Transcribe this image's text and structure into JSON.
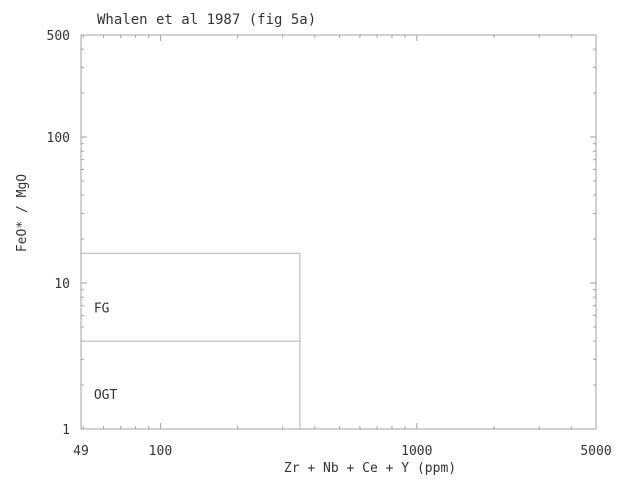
{
  "chart_data": {
    "type": "scatter",
    "title": "Whalen et al 1987 (fig 5a)",
    "xlabel": "Zr + Nb + Ce + Y  (ppm)",
    "ylabel": "FeO* / MgO",
    "x_scale": "log",
    "y_scale": "log",
    "xlim": [
      49,
      5000
    ],
    "ylim": [
      1,
      500
    ],
    "x_tick_labels": [
      {
        "value": 49,
        "label": "49"
      },
      {
        "value": 100,
        "label": "100"
      },
      {
        "value": 1000,
        "label": "1000"
      },
      {
        "value": 5000,
        "label": "5000"
      }
    ],
    "y_tick_labels": [
      {
        "value": 1,
        "label": "1"
      },
      {
        "value": 10,
        "label": "10"
      },
      {
        "value": 100,
        "label": "100"
      },
      {
        "value": 500,
        "label": "500"
      }
    ],
    "grid": false,
    "field_lines": [
      {
        "name": "fg-top-boundary",
        "points": [
          [
            49,
            16
          ],
          [
            350,
            16
          ]
        ]
      },
      {
        "name": "fg-right-boundary",
        "points": [
          [
            350,
            16
          ],
          [
            350,
            1
          ]
        ]
      },
      {
        "name": "fg-ogt-boundary",
        "points": [
          [
            49,
            4
          ],
          [
            350,
            4
          ]
        ]
      }
    ],
    "field_labels": [
      {
        "name": "field-label-fg",
        "text": "FG",
        "x": 55,
        "y": 6.3
      },
      {
        "name": "field-label-ogt",
        "text": "OGT",
        "x": 55,
        "y": 1.6
      }
    ],
    "points": []
  },
  "colors": {
    "axis": "#a0a0a0",
    "field_line": "#b0b0b0",
    "text": "#333333"
  }
}
